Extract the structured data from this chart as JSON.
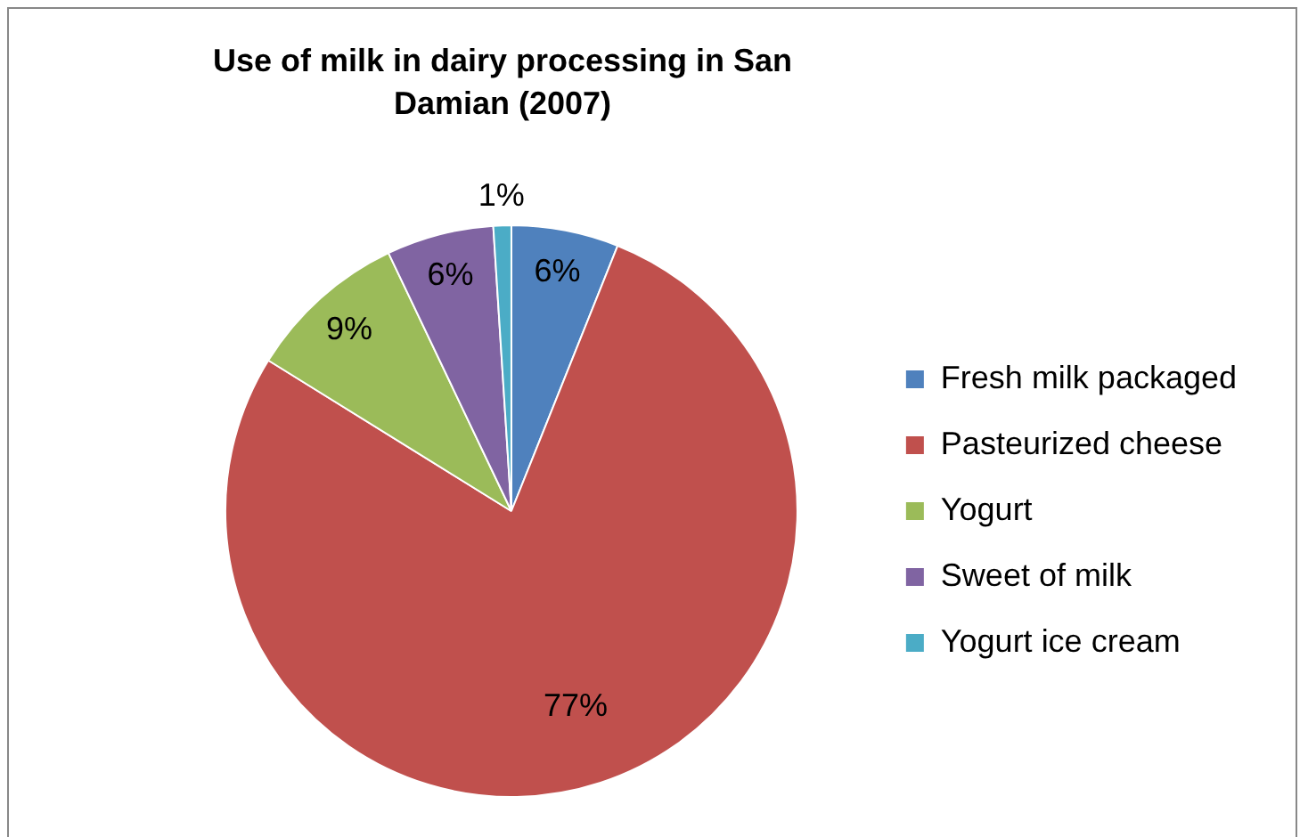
{
  "chart_data": {
    "type": "pie",
    "title": "Use of milk in dairy processing in San Damian (2007)",
    "categories": [
      "Fresh milk packaged",
      "Pasteurized cheese",
      "Yogurt",
      "Sweet of milk",
      "Yogurt ice cream"
    ],
    "values": [
      6,
      77,
      9,
      6,
      1
    ],
    "colors": [
      "#4f81bd",
      "#c0504d",
      "#9bbb59",
      "#8064a2",
      "#4bacc6"
    ],
    "value_labels": [
      "6%",
      "77%",
      "9%",
      "6%",
      "1%"
    ],
    "legend": "right"
  }
}
